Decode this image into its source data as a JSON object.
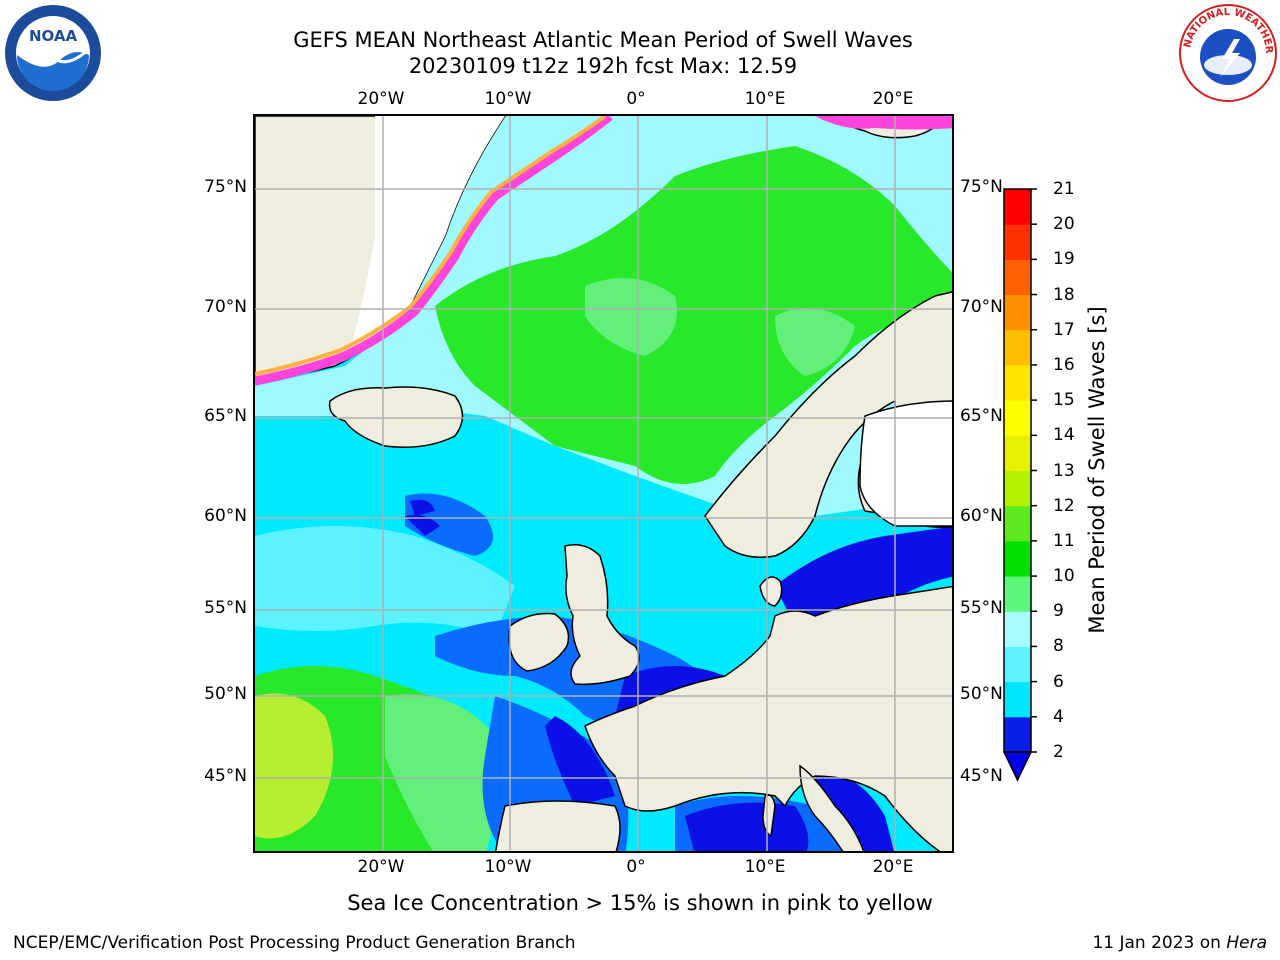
{
  "title_line1": "GEFS MEAN Northeast Atlantic Mean Period of Swell Waves",
  "title_line2": "20230109 t12z 192h fcst   Max: 12.59",
  "lon_ticks": [
    "20°W",
    "10°W",
    "0°",
    "10°E",
    "20°E"
  ],
  "lat_ticks": [
    "75°N",
    "70°N",
    "65°N",
    "60°N",
    "55°N",
    "50°N",
    "45°N"
  ],
  "colorbar": {
    "title": "Mean Period of Swell Waves [s]",
    "levels": [
      "2",
      "4",
      "6",
      "8",
      "9",
      "10",
      "11",
      "12",
      "13",
      "14",
      "15",
      "16",
      "17",
      "18",
      "19",
      "20",
      "21"
    ],
    "colors": [
      "#0a1fe8",
      "#0a78ff",
      "#00e6ff",
      "#5cf2ff",
      "#a8fcff",
      "#5cf77a",
      "#00e000",
      "#5ee81e",
      "#b4f000",
      "#e6f000",
      "#ffff00",
      "#ffe400",
      "#ffbf00",
      "#ff9000",
      "#ff6000",
      "#ff3000",
      "#ff0000"
    ],
    "under_color": "#0000ee"
  },
  "colors": {
    "land": "#efedde",
    "ocean_deep": "#00eaff",
    "ocean_pale": "#9ff9ff",
    "green": "#28e82a",
    "light_green": "#62f07a",
    "yellow_green": "#b8ee30",
    "blue": "#0a6cff",
    "dark_blue": "#0a10e6",
    "ice_pink": "#ff44dd",
    "ice_orange": "#ffb040",
    "grid": "#b0b0b0"
  },
  "logos": {
    "left": "noaa-logo",
    "right": "nws-logo",
    "right_text": "NATIONAL WEATHER SERVICE"
  },
  "note": "Sea Ice Concentration > 15% is shown in pink to yellow",
  "credit_left": "NCEP/EMC/Verification Post Processing Product Generation Branch",
  "credit_date": "11 Jan 2023 on",
  "credit_host": "Hera"
}
